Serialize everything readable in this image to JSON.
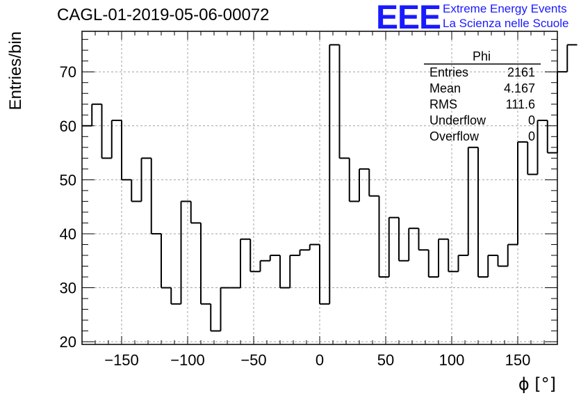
{
  "header": {
    "title": "CAGL-01-2019-05-06-00072",
    "logo_text": "EEE",
    "logo_line1": "Extreme Energy Events",
    "logo_line2": "La Scienza nelle Scuole"
  },
  "stats": {
    "name": "Phi",
    "rows": [
      {
        "label": "Entries",
        "value": "2161"
      },
      {
        "label": "Mean",
        "value": "4.167"
      },
      {
        "label": "RMS",
        "value": "111.6"
      },
      {
        "label": "Underflow",
        "value": "0"
      },
      {
        "label": "Overflow",
        "value": "0"
      }
    ]
  },
  "colors": {
    "line": "#000000",
    "grid": "#a0a0a0",
    "logo": "#1a1aff"
  },
  "chart_data": {
    "type": "histogram",
    "title": "CAGL-01-2019-05-06-00072",
    "xlabel": "ϕ [°]",
    "ylabel": "Entries/bin",
    "xlim": [
      -180,
      180
    ],
    "ylim": [
      19.5,
      77.5
    ],
    "bin_width": 7.5,
    "values": [
      60,
      64,
      54,
      61,
      50,
      46,
      54,
      40,
      30,
      27,
      46,
      42,
      27,
      22,
      30,
      30,
      39,
      33,
      35,
      36,
      30,
      36,
      37,
      38,
      27,
      75,
      54,
      46,
      52,
      47,
      32,
      43,
      35,
      41,
      37,
      32,
      39,
      33,
      36,
      56,
      32,
      36,
      34,
      38,
      57,
      51,
      61,
      55,
      70,
      75
    ],
    "xticks": [
      -150,
      -100,
      -50,
      0,
      50,
      100,
      150
    ],
    "xtick_labels": [
      "−150",
      "−100",
      "−50",
      "0",
      "50",
      "100",
      "150"
    ],
    "yticks": [
      20,
      30,
      40,
      50,
      60,
      70
    ],
    "ytick_labels": [
      "20",
      "30",
      "40",
      "50",
      "60",
      "70"
    ],
    "grid": true
  }
}
